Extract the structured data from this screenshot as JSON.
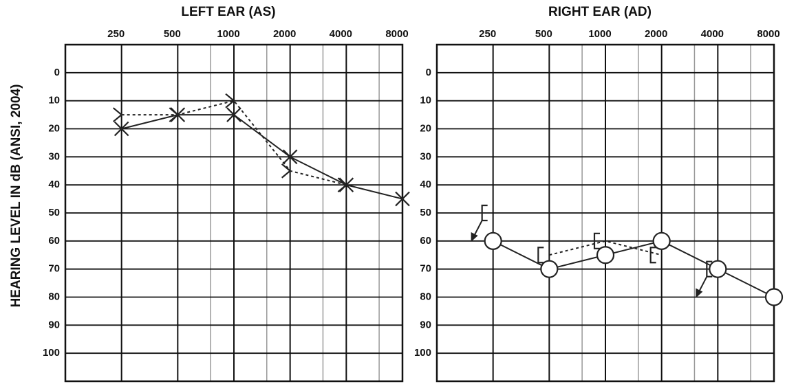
{
  "chart_data": [
    {
      "type": "audiogram",
      "title": "LEFT EAR (AS)",
      "ylabel": "HEARING LEVEL IN dB (ANSI, 2004)",
      "x": [
        250,
        500,
        1000,
        2000,
        4000,
        8000
      ],
      "xlim": [
        125,
        8000
      ],
      "xscale": "log",
      "xticks": [
        250,
        500,
        1000,
        2000,
        4000,
        8000
      ],
      "xminor": [
        750,
        1500,
        3000,
        6000
      ],
      "ylim": [
        -10,
        110
      ],
      "y_inverted": true,
      "yticks": [
        0,
        10,
        20,
        30,
        40,
        50,
        60,
        70,
        80,
        90,
        100
      ],
      "grid": true,
      "series": [
        {
          "marker": "x",
          "line": "solid",
          "color": "#222",
          "values": [
            20,
            15,
            15,
            30,
            40,
            45
          ]
        },
        {
          "marker": ">",
          "line": "dotted",
          "color": "#222",
          "values": [
            15,
            15,
            10,
            35,
            40,
            null
          ]
        }
      ]
    },
    {
      "type": "audiogram",
      "title": "RIGHT EAR (AD)",
      "x": [
        250,
        500,
        1000,
        2000,
        4000,
        8000
      ],
      "xlim": [
        125,
        8000
      ],
      "xscale": "log",
      "xticks": [
        250,
        500,
        1000,
        2000,
        4000,
        8000
      ],
      "xminor": [
        750,
        1500,
        3000,
        6000
      ],
      "ylim": [
        -10,
        110
      ],
      "y_inverted": true,
      "yticks": [
        0,
        10,
        20,
        30,
        40,
        50,
        60,
        70,
        80,
        90,
        100
      ],
      "grid": true,
      "series": [
        {
          "marker": "o",
          "line": "solid",
          "color": "#222",
          "values": [
            60,
            70,
            65,
            60,
            70,
            80
          ]
        },
        {
          "marker": "[",
          "line": "dotted",
          "color": "#222",
          "values": [
            null,
            65,
            60,
            65,
            null,
            null
          ]
        },
        {
          "marker": "[",
          "line": "none",
          "arrow": true,
          "color": "#222",
          "values": [
            50,
            null,
            null,
            null,
            70,
            null
          ]
        }
      ]
    }
  ]
}
